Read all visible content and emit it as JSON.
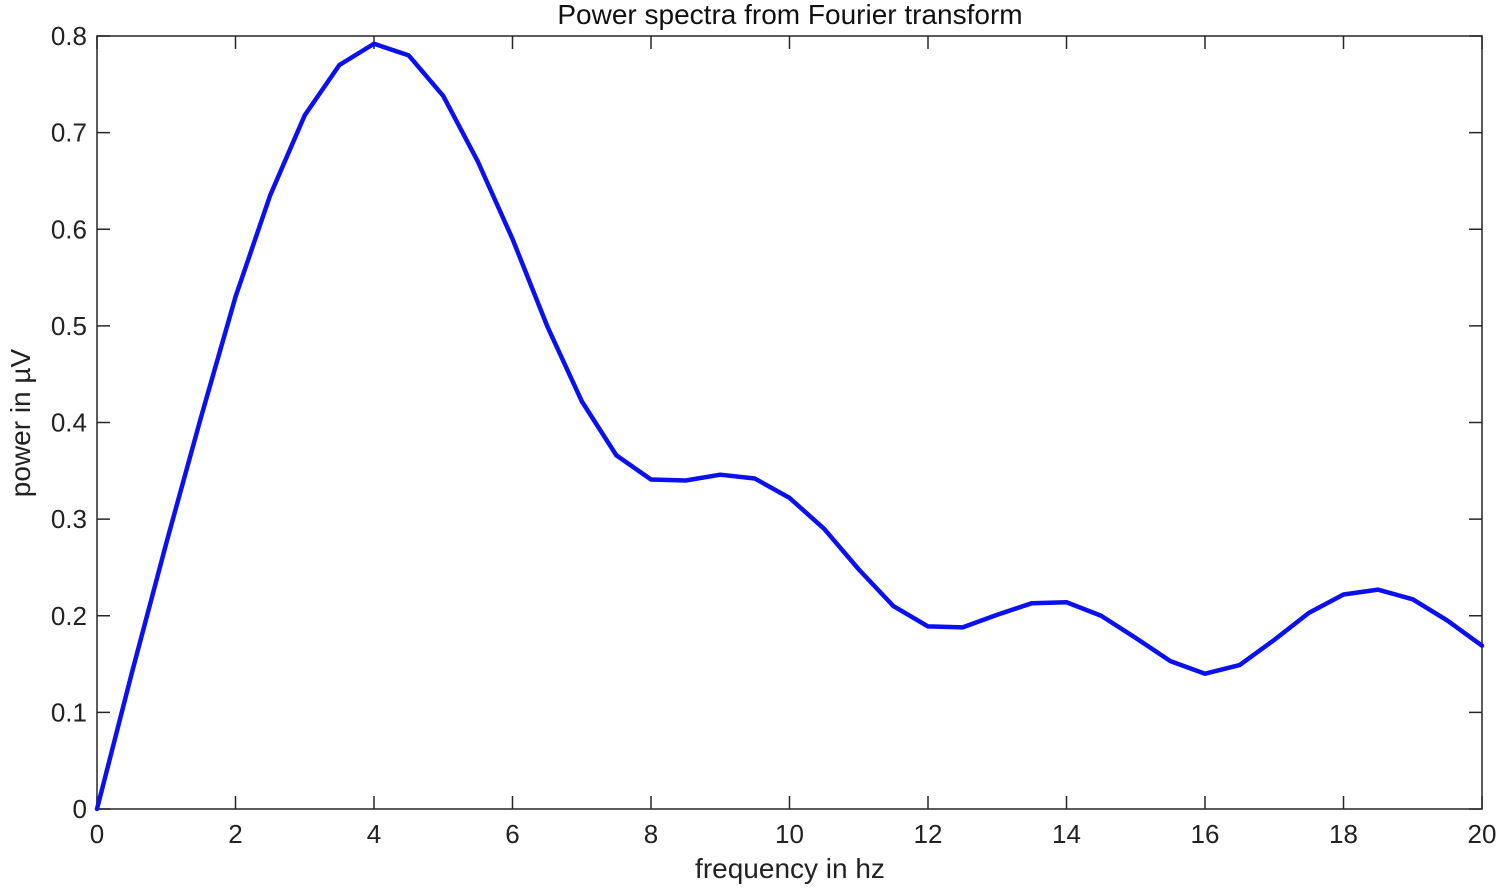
{
  "chart_data": {
    "type": "line",
    "title": "Power spectra from Fourier transform",
    "xlabel": "frequency in hz",
    "ylabel": "power in µV",
    "xlim": [
      0,
      20
    ],
    "ylim": [
      0,
      0.8
    ],
    "xticks": [
      "0",
      "2",
      "4",
      "6",
      "8",
      "10",
      "12",
      "14",
      "16",
      "18",
      "20"
    ],
    "yticks": [
      "0",
      "0.1",
      "0.2",
      "0.3",
      "0.4",
      "0.5",
      "0.6",
      "0.7",
      "0.8"
    ],
    "grid": false,
    "series": [
      {
        "color": "#0a10f0",
        "x": [
          0,
          0.5,
          1,
          1.5,
          2,
          2.5,
          3,
          3.5,
          4,
          4.5,
          5,
          5.5,
          6,
          6.5,
          7,
          7.5,
          8,
          8.5,
          9,
          9.5,
          10,
          10.5,
          11,
          11.5,
          12,
          12.5,
          13,
          13.5,
          14,
          14.5,
          15,
          15.5,
          16,
          16.5,
          17,
          17.5,
          18,
          18.5,
          19,
          19.5,
          20
        ],
        "y": [
          0.0,
          0.14,
          0.275,
          0.405,
          0.53,
          0.635,
          0.718,
          0.77,
          0.792,
          0.78,
          0.738,
          0.67,
          0.59,
          0.5,
          0.422,
          0.366,
          0.341,
          0.34,
          0.346,
          0.342,
          0.322,
          0.29,
          0.248,
          0.21,
          0.189,
          0.188,
          0.201,
          0.213,
          0.214,
          0.2,
          0.177,
          0.153,
          0.14,
          0.149,
          0.175,
          0.203,
          0.222,
          0.227,
          0.217,
          0.195,
          0.169
        ]
      }
    ]
  }
}
